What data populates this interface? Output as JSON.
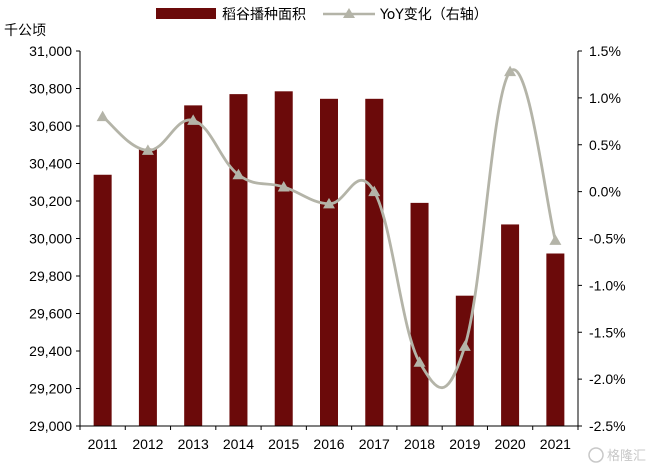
{
  "unit_label": "千公顷",
  "watermark": "格隆汇",
  "chart_data": {
    "type": "bar",
    "categories": [
      "2011",
      "2012",
      "2013",
      "2014",
      "2015",
      "2016",
      "2017",
      "2018",
      "2019",
      "2020",
      "2021"
    ],
    "series": [
      {
        "name": "稻谷播种面积",
        "type": "bar",
        "axis": "left",
        "color": "#6b0a0a",
        "values": [
          30340,
          30480,
          30710,
          30770,
          30785,
          30745,
          30745,
          30190,
          29695,
          30075,
          29920
        ]
      },
      {
        "name": "YoY变化（右轴）",
        "type": "line",
        "axis": "right",
        "color": "#b4b4a8",
        "marker": "triangle",
        "values": [
          0.8,
          0.44,
          0.76,
          0.18,
          0.05,
          -0.13,
          0.0,
          -1.82,
          -1.65,
          1.28,
          -0.52
        ]
      }
    ],
    "y_left": {
      "ylim": [
        29000,
        31000
      ],
      "ticks": [
        "29,000",
        "29,200",
        "29,400",
        "29,600",
        "29,800",
        "30,000",
        "30,200",
        "30,400",
        "30,600",
        "30,800",
        "31,000"
      ]
    },
    "y_right": {
      "ylim": [
        -2.5,
        1.5
      ],
      "ticks": [
        "-2.5%",
        "-2.0%",
        "-1.5%",
        "-1.0%",
        "-0.5%",
        "0.0%",
        "0.5%",
        "1.0%",
        "1.5%"
      ]
    },
    "grid": false,
    "legend_position": "top"
  }
}
